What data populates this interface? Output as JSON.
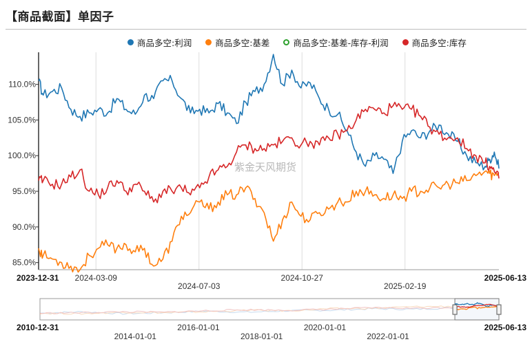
{
  "title": "【商品截面】单因子",
  "watermark": "紫金天风期货",
  "colors": {
    "profit": "#1f77b4",
    "basis": "#ff7f0e",
    "basis_minus": "#2ca02c",
    "inventory": "#d62728"
  },
  "legend": [
    {
      "label": "商品多空:利润",
      "color": "#1f77b4",
      "hollow": false
    },
    {
      "label": "商品多空:基差",
      "color": "#ff7f0e",
      "hollow": false
    },
    {
      "label": "商品多空:基差-库存-利润",
      "color": "#2ca02c",
      "hollow": true
    },
    {
      "label": "商品多空:库存",
      "color": "#d62728",
      "hollow": false
    }
  ],
  "chart_data": {
    "type": "line",
    "title": "【商品截面】单因子",
    "ylabel": "",
    "ylim": [
      84,
      114.5
    ],
    "yticks": [
      85,
      90,
      95,
      100,
      105,
      110
    ],
    "ytick_labels": [
      "85.0%",
      "90.0%",
      "95.0%",
      "100.0%",
      "105.0%",
      "110.0%"
    ],
    "xlim": [
      "2023-12-31",
      "2025-06-13"
    ],
    "xtick_labels": [
      {
        "label": "2023-12-31",
        "t": 0,
        "row": 0,
        "bold": true
      },
      {
        "label": "2024-03-09",
        "t": 0.1246,
        "row": 0,
        "bold": false
      },
      {
        "label": "2024-07-03",
        "t": 0.3484,
        "row": 1,
        "bold": false
      },
      {
        "label": "2024-10-27",
        "t": 0.5722,
        "row": 0,
        "bold": false
      },
      {
        "label": "2025-02-19",
        "t": 0.796,
        "row": 1,
        "bold": false
      },
      {
        "label": "2025-06-13",
        "t": 1,
        "row": 0,
        "bold": true
      }
    ],
    "series": [
      {
        "name": "商品多空:利润",
        "color": "#1f77b4",
        "x": [
          0,
          0.01,
          0.03,
          0.05,
          0.07,
          0.09,
          0.11,
          0.13,
          0.15,
          0.17,
          0.19,
          0.21,
          0.23,
          0.25,
          0.27,
          0.29,
          0.31,
          0.33,
          0.35,
          0.37,
          0.39,
          0.41,
          0.43,
          0.45,
          0.47,
          0.49,
          0.51,
          0.53,
          0.55,
          0.57,
          0.59,
          0.61,
          0.63,
          0.65,
          0.67,
          0.69,
          0.71,
          0.73,
          0.75,
          0.77,
          0.79,
          0.81,
          0.83,
          0.85,
          0.87,
          0.89,
          0.91,
          0.93,
          0.95,
          0.97,
          0.98,
          0.99,
          1.0
        ],
        "values": [
          110.5,
          108.5,
          109,
          109.5,
          106.5,
          105.5,
          106,
          106.5,
          106,
          108,
          106.5,
          105.8,
          108.5,
          108,
          110.5,
          110.5,
          108,
          106,
          106.5,
          106,
          107.3,
          106,
          104.5,
          107.5,
          109,
          110,
          114.2,
          110,
          112,
          109.5,
          110.2,
          108,
          106.5,
          105.8,
          103.5,
          100.5,
          98.5,
          100,
          99.5,
          97.5,
          102,
          103.5,
          102.5,
          103.5,
          104.3,
          103,
          102,
          100,
          99,
          98.5,
          99.5,
          100.5,
          98.2
        ]
      },
      {
        "name": "商品多空:基差",
        "color": "#ff7f0e",
        "x": [
          0,
          0.01,
          0.03,
          0.05,
          0.07,
          0.09,
          0.11,
          0.13,
          0.15,
          0.17,
          0.19,
          0.21,
          0.23,
          0.25,
          0.27,
          0.29,
          0.31,
          0.33,
          0.35,
          0.37,
          0.39,
          0.41,
          0.43,
          0.45,
          0.47,
          0.49,
          0.51,
          0.53,
          0.55,
          0.57,
          0.59,
          0.61,
          0.63,
          0.65,
          0.67,
          0.69,
          0.71,
          0.73,
          0.75,
          0.77,
          0.79,
          0.81,
          0.83,
          0.85,
          0.87,
          0.89,
          0.91,
          0.93,
          0.95,
          0.97,
          0.98,
          0.99,
          1.0
        ],
        "values": [
          87,
          86,
          85.5,
          85,
          84.5,
          84,
          86,
          87,
          87.5,
          87,
          87.5,
          86.5,
          87,
          84.5,
          85.5,
          88,
          91.5,
          92,
          93.5,
          92.5,
          93.5,
          94.5,
          94.5,
          95.5,
          94,
          92,
          88,
          91,
          93.5,
          91.5,
          91,
          92,
          92.5,
          93.5,
          93.5,
          95,
          95,
          94.5,
          94,
          94.5,
          94,
          95,
          95,
          95.5,
          95.5,
          96,
          96.2,
          96.5,
          97.2,
          97.8,
          97.5,
          97.2,
          97.6
        ]
      },
      {
        "name": "商品多空:库存",
        "color": "#d62728",
        "x": [
          0,
          0.01,
          0.03,
          0.05,
          0.07,
          0.09,
          0.11,
          0.13,
          0.15,
          0.17,
          0.19,
          0.21,
          0.23,
          0.25,
          0.27,
          0.29,
          0.31,
          0.33,
          0.35,
          0.37,
          0.39,
          0.41,
          0.43,
          0.45,
          0.47,
          0.49,
          0.51,
          0.53,
          0.55,
          0.57,
          0.59,
          0.61,
          0.63,
          0.65,
          0.67,
          0.69,
          0.71,
          0.73,
          0.75,
          0.77,
          0.79,
          0.81,
          0.83,
          0.85,
          0.87,
          0.89,
          0.91,
          0.93,
          0.95,
          0.97,
          0.98,
          0.99,
          1.0
        ],
        "values": [
          96.5,
          96.5,
          96,
          96,
          97,
          98,
          95,
          94.5,
          95.5,
          96.5,
          95,
          96,
          95,
          93.5,
          95,
          95,
          95.5,
          94.5,
          95.5,
          97,
          98,
          98.5,
          100.5,
          101.5,
          101,
          101,
          101.5,
          102,
          102.5,
          101.5,
          102,
          101.5,
          102.5,
          103,
          103.5,
          105,
          106.5,
          106.5,
          106,
          107,
          106.5,
          106.5,
          105.5,
          104,
          103,
          102.5,
          102.5,
          101,
          100,
          99,
          98.5,
          97.8,
          96.8
        ]
      }
    ],
    "navigator": {
      "range_start": "2010-12-31",
      "range_end": "2025-06-13",
      "ticks": [
        {
          "label": "2010-12-31",
          "t": 0,
          "row": 0,
          "bold": true
        },
        {
          "label": "2014-01-01",
          "t": 0.2076,
          "row": 1,
          "bold": false
        },
        {
          "label": "2016-01-01",
          "t": 0.3453,
          "row": 0,
          "bold": false
        },
        {
          "label": "2018-01-01",
          "t": 0.483,
          "row": 1,
          "bold": false
        },
        {
          "label": "2020-01-01",
          "t": 0.6209,
          "row": 0,
          "bold": false
        },
        {
          "label": "2022-01-01",
          "t": 0.7583,
          "row": 1,
          "bold": false
        },
        {
          "label": "2025-06-13",
          "t": 1,
          "row": 0,
          "bold": true
        }
      ]
    }
  }
}
